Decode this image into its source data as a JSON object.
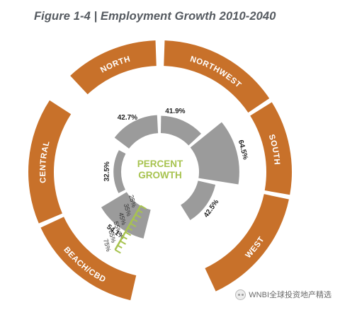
{
  "figure_title": "Figure 1-4 | Employment Growth 2010-2040",
  "chart_data": {
    "type": "radial-bar",
    "title": "Figure 1-4 | Employment Growth 2010-2040",
    "center_label": [
      "PERCENT",
      "GROWTH"
    ],
    "categories": [
      "NORTH",
      "NORTHWEST",
      "SOUTH",
      "WEST",
      "BEACH/CBD",
      "CENTRAL"
    ],
    "values": [
      42.7,
      41.9,
      64.5,
      42.5,
      54.1,
      32.5
    ],
    "value_labels": [
      "42.7%",
      "41.9%",
      "64.5%",
      "42.5%",
      "54.1%",
      "32.5%"
    ],
    "region_labels": [
      "NORTH",
      "NORTHWEST",
      "SOUTH",
      "WEST",
      "BEACH/CBD",
      "CENTRAL"
    ],
    "scale_ticks": [
      "25%",
      "35%",
      "45%",
      "55%",
      "65%",
      "75%"
    ],
    "scale_values": [
      25,
      35,
      45,
      55,
      65,
      75
    ],
    "colors": {
      "ring": "#c8712a",
      "bars": "#9b9b9b",
      "scale": "#a7c34f",
      "center_text": "#a7c34f",
      "labels": "#222222",
      "title": "#555a60"
    }
  },
  "watermark": "WNBI全球投资地产精选"
}
